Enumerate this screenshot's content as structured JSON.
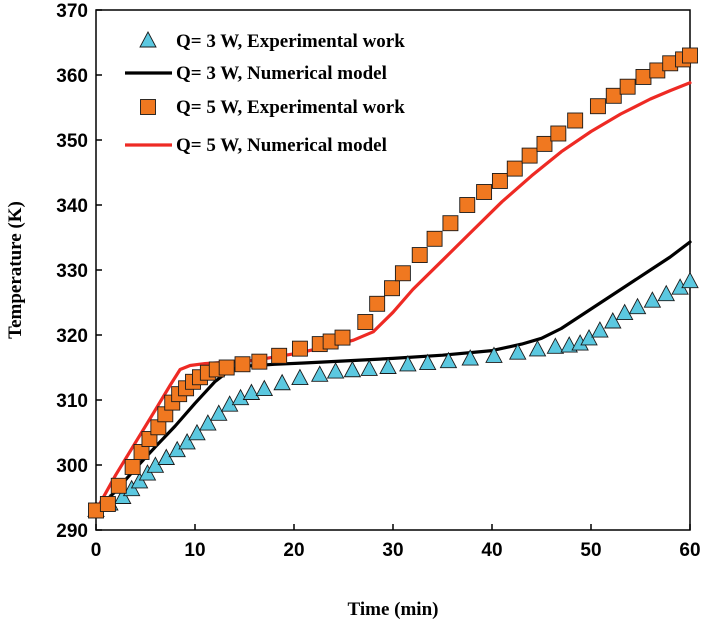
{
  "chart_data": {
    "type": "line",
    "title": "",
    "xlabel": "Time (min)",
    "ylabel": "Temperature (K)",
    "xlim": [
      0,
      60
    ],
    "ylim": [
      290,
      370
    ],
    "xticks": [
      0,
      10,
      20,
      30,
      40,
      50,
      60
    ],
    "yticks": [
      290,
      300,
      310,
      320,
      330,
      340,
      350,
      360,
      370
    ],
    "grid": false,
    "legend_position": "top-left",
    "series": [
      {
        "name": "Q= 3 W, Experimental work",
        "kind": "markers",
        "marker": "triangle",
        "color": "#5bc8e0",
        "x": [
          0,
          1.4,
          2.7,
          3.6,
          4.4,
          5.2,
          6.0,
          7.1,
          8.2,
          9.2,
          10.2,
          11.3,
          12.4,
          13.5,
          14.6,
          15.7,
          17.0,
          18.8,
          20.6,
          22.6,
          24.2,
          25.9,
          27.6,
          29.5,
          31.5,
          33.5,
          35.6,
          37.8,
          40.2,
          42.6,
          44.6,
          46.4,
          47.8,
          48.9,
          49.8,
          50.9,
          52.2,
          53.4,
          54.7,
          56.2,
          57.6,
          59.0,
          60.0
        ],
        "y": [
          293.0,
          294.0,
          295.0,
          296.2,
          297.4,
          298.6,
          299.8,
          301.0,
          302.2,
          303.4,
          304.8,
          306.3,
          307.8,
          309.2,
          310.2,
          311.0,
          311.6,
          312.5,
          313.3,
          313.8,
          314.3,
          314.5,
          314.7,
          315.0,
          315.4,
          315.6,
          315.9,
          316.3,
          316.7,
          317.2,
          317.7,
          318.1,
          318.3,
          318.6,
          319.4,
          320.6,
          322.0,
          323.3,
          324.2,
          325.2,
          326.2,
          327.2,
          328.2
        ]
      },
      {
        "name": "Q= 3 W, Numerical model",
        "kind": "line",
        "color": "#000000",
        "x": [
          0,
          2,
          4,
          6,
          8,
          10,
          12,
          13.5,
          15,
          18,
          21,
          25,
          30,
          35,
          40,
          43,
          45,
          47,
          50,
          53,
          56,
          58,
          60
        ],
        "y": [
          293.0,
          296.0,
          299.5,
          302.8,
          306.0,
          309.5,
          312.8,
          314.6,
          315.2,
          315.5,
          315.7,
          316.0,
          316.4,
          316.9,
          317.6,
          318.6,
          319.5,
          321.0,
          324.0,
          327.0,
          330.0,
          332.0,
          334.3
        ]
      },
      {
        "name": "Q= 5 W, Experimental work",
        "kind": "markers",
        "marker": "square",
        "color": "#f07820",
        "x": [
          0,
          1.2,
          2.3,
          3.7,
          4.6,
          5.4,
          6.3,
          7.0,
          7.7,
          8.4,
          9.1,
          9.8,
          10.5,
          11.3,
          12.2,
          13.2,
          14.8,
          16.5,
          18.5,
          20.6,
          22.6,
          23.7,
          24.9,
          27.2,
          28.4,
          29.9,
          31.0,
          32.7,
          34.2,
          35.8,
          37.5,
          39.2,
          40.8,
          42.3,
          43.8,
          45.3,
          46.7,
          48.4,
          50.7,
          52.3,
          53.7,
          55.3,
          56.7,
          58.0,
          59.3,
          60.0
        ],
        "y": [
          293.0,
          294.0,
          296.8,
          299.7,
          302.0,
          304.0,
          305.8,
          307.8,
          309.6,
          310.9,
          311.8,
          312.8,
          313.5,
          314.2,
          314.7,
          315.0,
          315.5,
          315.9,
          316.8,
          317.9,
          318.6,
          319.0,
          319.6,
          322.0,
          324.8,
          327.2,
          329.5,
          332.3,
          334.8,
          337.2,
          340.0,
          342.0,
          343.7,
          345.6,
          347.6,
          349.4,
          351.0,
          353.0,
          355.2,
          356.8,
          358.2,
          359.7,
          360.7,
          361.8,
          362.4,
          363.0
        ]
      },
      {
        "name": "Q= 5 W, Numerical model",
        "kind": "line",
        "color": "#ee2a24",
        "x": [
          0,
          2,
          4,
          6,
          7.5,
          8.5,
          9.5,
          11,
          13,
          16,
          20,
          24,
          26,
          28,
          30,
          32,
          35,
          38,
          41,
          44,
          47,
          50,
          53,
          56,
          58,
          60
        ],
        "y": [
          293.0,
          298.5,
          303.5,
          308.5,
          312.3,
          314.7,
          315.3,
          315.6,
          315.8,
          316.1,
          317.1,
          318.4,
          319.2,
          320.5,
          323.5,
          327.0,
          331.5,
          336.0,
          340.5,
          344.5,
          348.2,
          351.3,
          354.0,
          356.3,
          357.6,
          358.8
        ]
      }
    ]
  }
}
